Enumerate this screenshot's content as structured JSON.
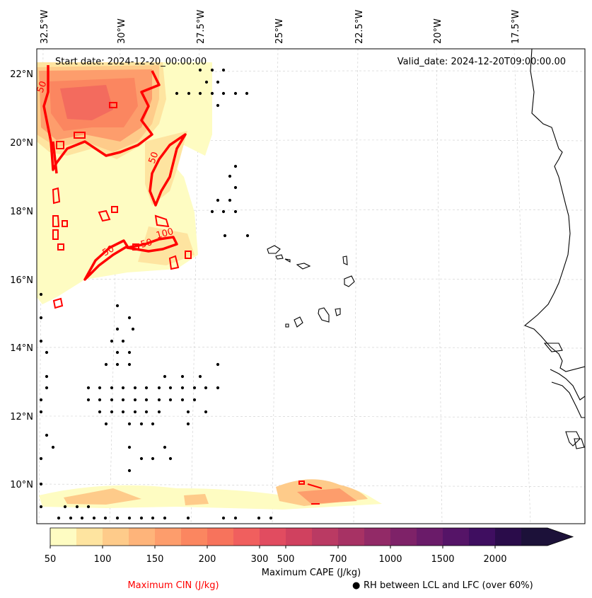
{
  "header": {
    "start_date": "Start date: 2024-12-20_00:00:00",
    "valid_date": "Valid_date: 2024-12-20T09:00:00.00"
  },
  "axes": {
    "longitude_labels": [
      "32.5°W",
      "30°W",
      "27.5°W",
      "25°W",
      "22.5°W",
      "20°W",
      "17.5°W"
    ],
    "latitude_labels": [
      "22°N",
      "20°N",
      "18°N",
      "16°N",
      "14°N",
      "12°N",
      "10°N"
    ]
  },
  "colorbar": {
    "title": "Maximum CAPE (J/kg)",
    "tick_labels": [
      "50",
      "100",
      "150",
      "200",
      "300",
      "500",
      "700",
      "1000",
      "1500",
      "2000"
    ],
    "colors": [
      "#fefcc2",
      "#fee4a0",
      "#fecb8a",
      "#feb47a",
      "#fd9d6c",
      "#fb8660",
      "#f7735c",
      "#f05f5e",
      "#e14c60",
      "#d0415f",
      "#ba3a63",
      "#a73264",
      "#922a67",
      "#7e2268",
      "#6a1b69",
      "#551467",
      "#3f0e60",
      "#2a0c4a",
      "#1c1139"
    ]
  },
  "legend": {
    "cin_label": "Maximum CIN (J/kg)",
    "rh_marker": "●",
    "rh_label": "RH between LCL and LFC (over 60%)"
  },
  "contour_labels": [
    "50",
    "50",
    "50",
    "100",
    "50"
  ],
  "colors": {
    "cin_contour": "#ff0000",
    "coastline": "#000000",
    "gridline": "#cccccc"
  }
}
